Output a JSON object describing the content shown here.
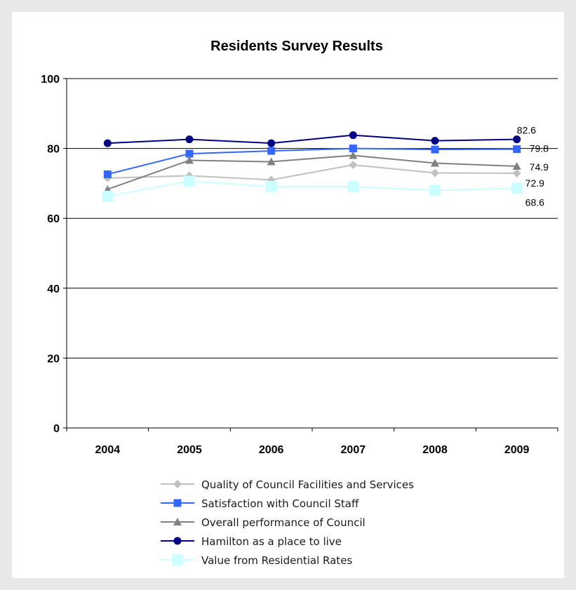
{
  "chart_data": {
    "type": "line",
    "title": "Residents Survey Results",
    "categories": [
      "2004",
      "2005",
      "2006",
      "2007",
      "2008",
      "2009"
    ],
    "ylim": [
      0,
      100
    ],
    "yticks": [
      "0",
      "20",
      "40",
      "60",
      "80",
      "100"
    ],
    "grid": true,
    "legend_position": "bottom",
    "series": [
      {
        "name": "Quality of Council Facilities and Services",
        "values": [
          71.5,
          72.2,
          71.0,
          75.3,
          73.0,
          72.9
        ],
        "color": "#c0c0c0",
        "marker": "diamond",
        "end_label": "72.9"
      },
      {
        "name": "Satisfaction with Council Staff",
        "values": [
          72.6,
          78.5,
          79.3,
          80.0,
          79.7,
          79.8
        ],
        "color": "#3366ff",
        "marker": "square",
        "end_label": "79.8"
      },
      {
        "name": "Overall performance of Council",
        "values": [
          68.3,
          76.6,
          76.2,
          78.0,
          75.8,
          74.9
        ],
        "color": "#808080",
        "marker": "triangle",
        "end_label": "74.9"
      },
      {
        "name": "Hamilton as a place to live",
        "values": [
          81.5,
          82.6,
          81.5,
          83.8,
          82.2,
          82.6
        ],
        "color": "#000080",
        "marker": "circle",
        "end_label": "82.6"
      },
      {
        "name": "Value from Residential Rates",
        "values": [
          66.3,
          70.6,
          69.1,
          69.1,
          68.0,
          68.6
        ],
        "color": "#ccffff",
        "marker": "bigsquare",
        "end_label": "68.6"
      }
    ]
  }
}
